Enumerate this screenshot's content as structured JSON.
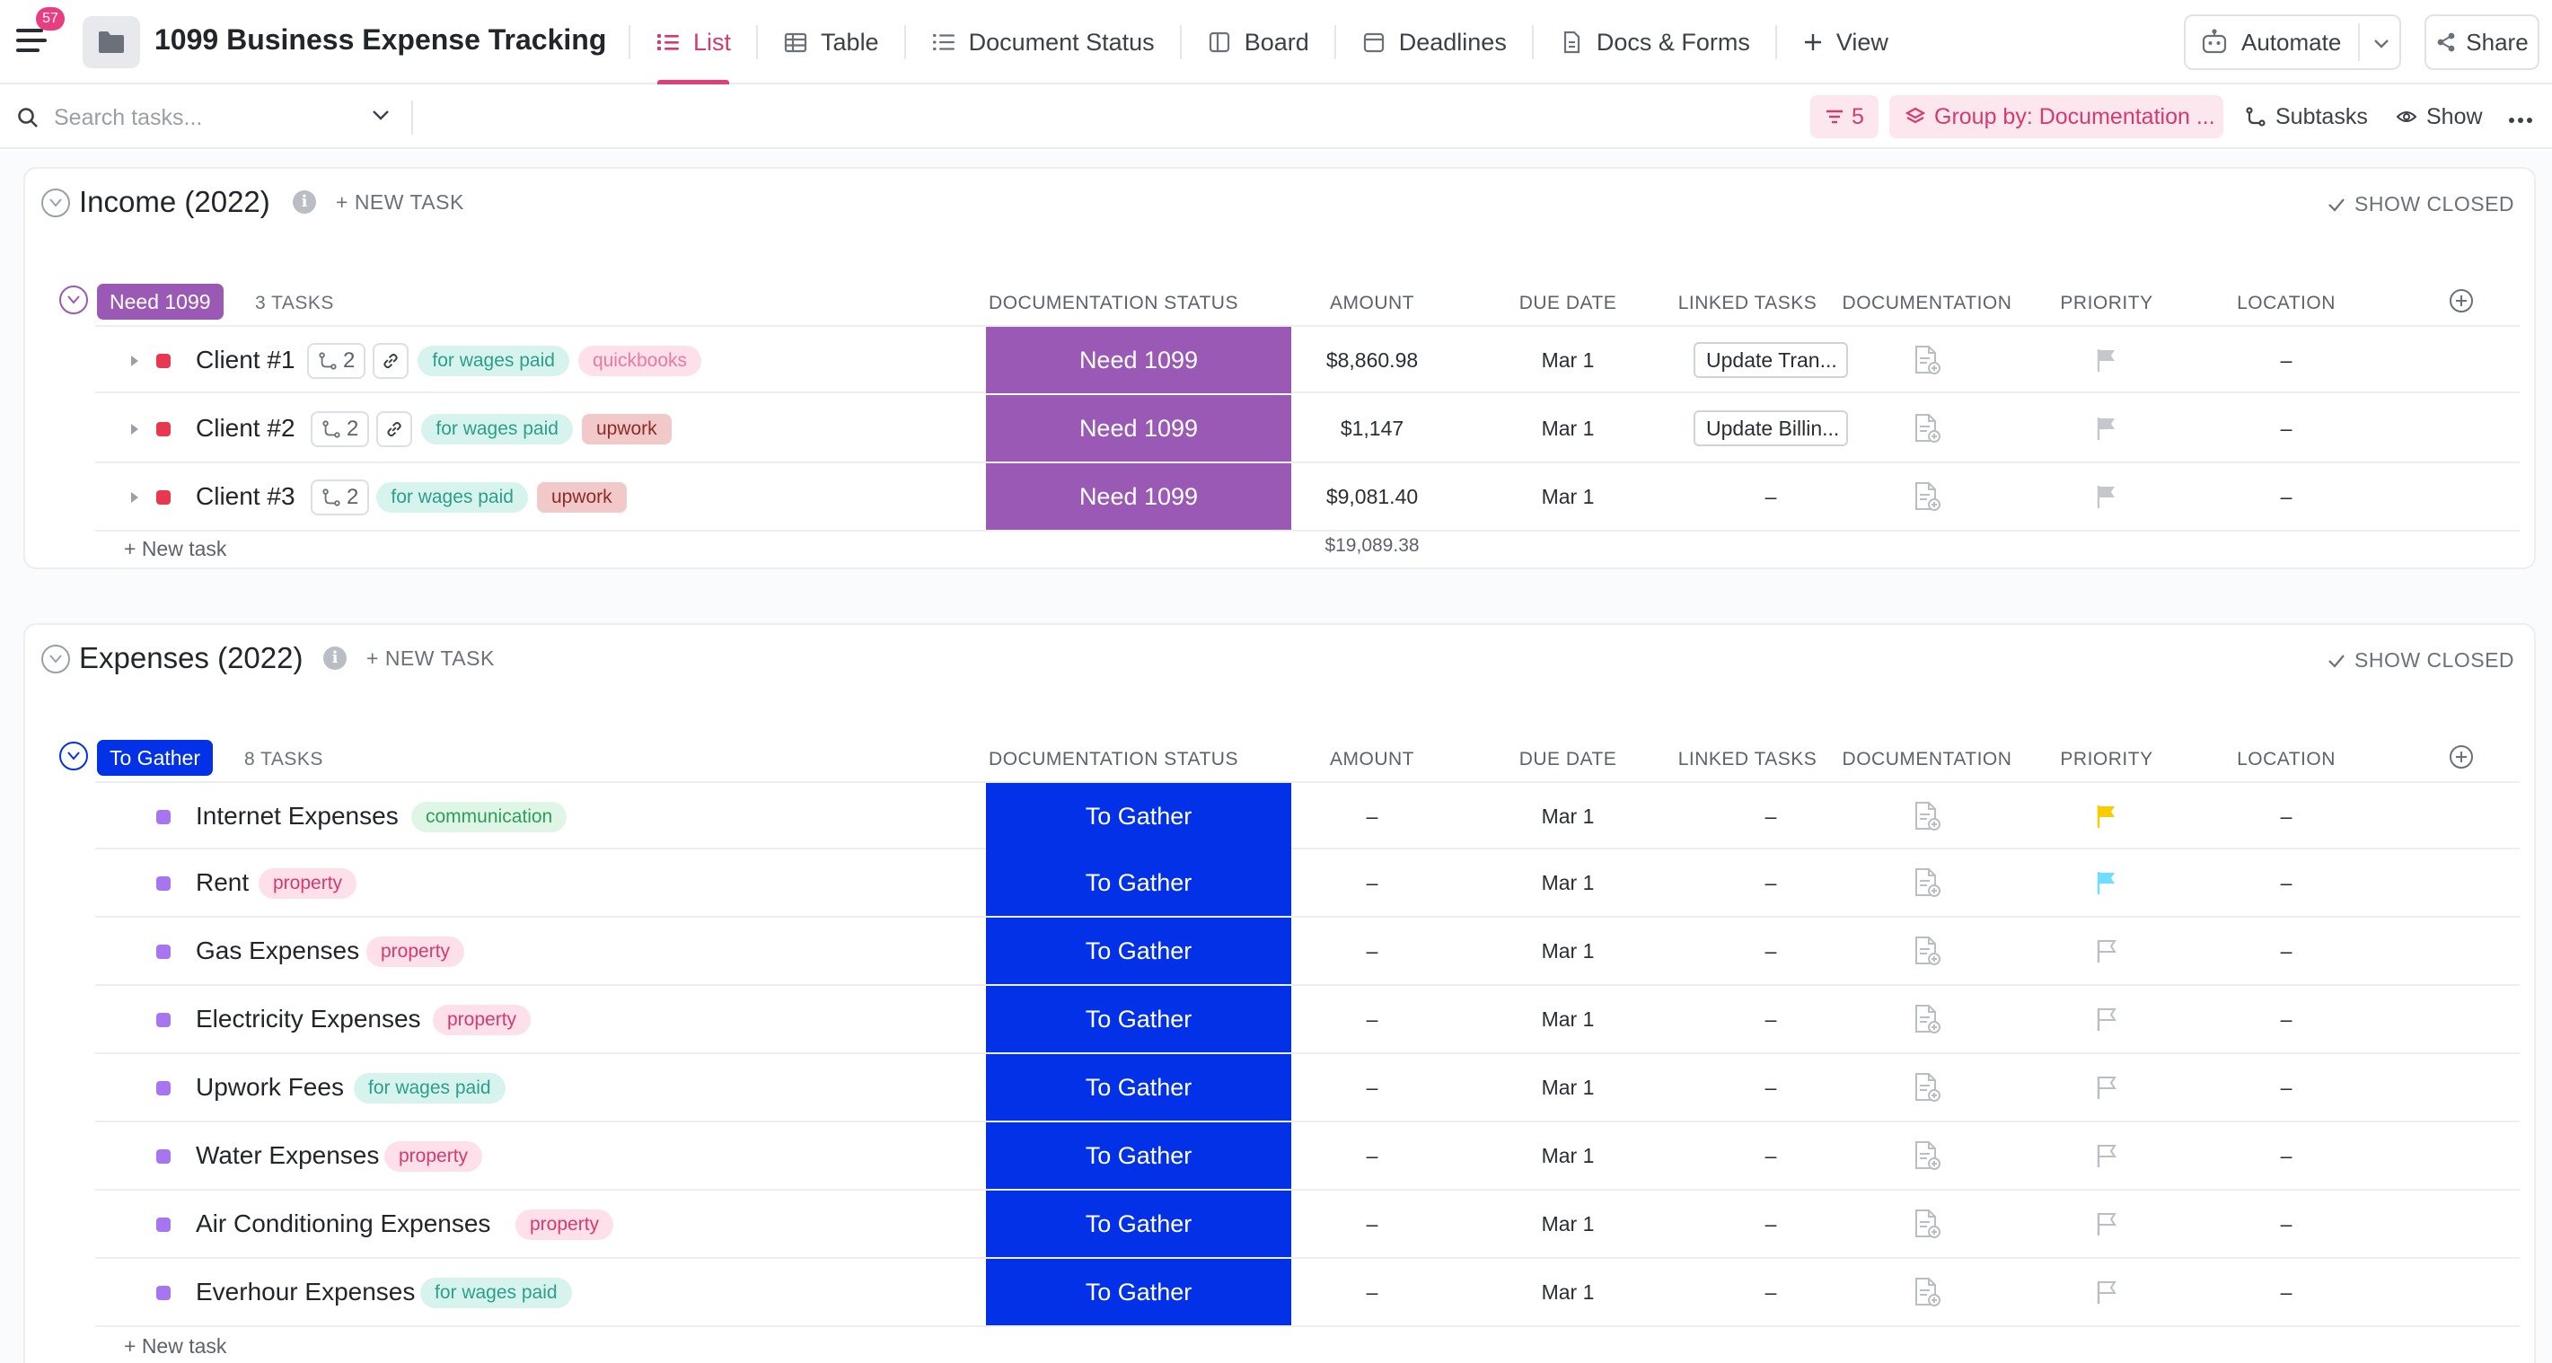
{
  "header": {
    "notification_count": "57",
    "title": "1099 Business Expense Tracking",
    "tabs": [
      {
        "label": "List",
        "icon": "list-icon"
      },
      {
        "label": "Table",
        "icon": "table-icon"
      },
      {
        "label": "Document Status",
        "icon": "list-icon"
      },
      {
        "label": "Board",
        "icon": "board-icon"
      },
      {
        "label": "Deadlines",
        "icon": "calendar-icon"
      },
      {
        "label": "Docs & Forms",
        "icon": "doc-icon"
      },
      {
        "label": "View",
        "icon": "plus-icon"
      }
    ],
    "automate_label": "Automate",
    "share_label": "Share"
  },
  "toolbar": {
    "search_placeholder": "Search tasks...",
    "filter_count": "5",
    "group_by_label": "Group by: Documentation ...",
    "subtasks_label": "Subtasks",
    "show_label": "Show"
  },
  "columns": [
    "DOCUMENTATION STATUS",
    "AMOUNT",
    "DUE DATE",
    "LINKED TASKS",
    "DOCUMENTATION",
    "PRIORITY",
    "LOCATION"
  ],
  "sections": [
    {
      "title": "Income (2022)",
      "new_task_label": "+ NEW TASK",
      "show_closed_label": "SHOW CLOSED",
      "group": {
        "label": "Need 1099",
        "count": "3 TASKS",
        "color": "#9b59b6"
      },
      "rows": [
        {
          "name": "Client #1",
          "subtasks": "2",
          "tags": [
            "for wages paid",
            "quickbooks"
          ],
          "status": "Need 1099",
          "amount": "$8,860.98",
          "due": "Mar 1",
          "linked": "Update Tran...",
          "location": "–"
        },
        {
          "name": "Client #2",
          "subtasks": "2",
          "tags": [
            "for wages paid",
            "upwork"
          ],
          "status": "Need 1099",
          "amount": "$1,147",
          "due": "Mar 1",
          "linked": "Update Billin...",
          "location": "–"
        },
        {
          "name": "Client #3",
          "subtasks": "2",
          "tags": [
            "for wages paid",
            "upwork"
          ],
          "status": "Need 1099",
          "amount": "$9,081.40",
          "due": "Mar 1",
          "linked": "–",
          "location": "–"
        }
      ],
      "new_task_row": "+ New task",
      "total": "$19,089.38"
    },
    {
      "title": "Expenses (2022)",
      "new_task_label": "+ NEW TASK",
      "show_closed_label": "SHOW CLOSED",
      "group": {
        "label": "To Gather",
        "count": "8 TASKS",
        "color": "#0231e8"
      },
      "rows": [
        {
          "name": "Internet Expenses",
          "tags": [
            "communication"
          ],
          "status": "To Gather",
          "amount": "–",
          "due": "Mar 1",
          "linked": "–",
          "priority": "high",
          "location": "–"
        },
        {
          "name": "Rent",
          "tags": [
            "property"
          ],
          "status": "To Gather",
          "amount": "–",
          "due": "Mar 1",
          "linked": "–",
          "priority": "normal",
          "location": "–"
        },
        {
          "name": "Gas Expenses",
          "tags": [
            "property"
          ],
          "status": "To Gather",
          "amount": "–",
          "due": "Mar 1",
          "linked": "–",
          "location": "–"
        },
        {
          "name": "Electricity Expenses",
          "tags": [
            "property"
          ],
          "status": "To Gather",
          "amount": "–",
          "due": "Mar 1",
          "linked": "–",
          "location": "–"
        },
        {
          "name": "Upwork Fees",
          "tags": [
            "for wages paid"
          ],
          "status": "To Gather",
          "amount": "–",
          "due": "Mar 1",
          "linked": "–",
          "location": "–"
        },
        {
          "name": "Water Expenses",
          "tags": [
            "property"
          ],
          "status": "To Gather",
          "amount": "–",
          "due": "Mar 1",
          "linked": "–",
          "location": "–"
        },
        {
          "name": "Air Conditioning Expenses",
          "tags": [
            "property"
          ],
          "status": "To Gather",
          "amount": "–",
          "due": "Mar 1",
          "linked": "–",
          "location": "–"
        },
        {
          "name": "Everhour Expenses",
          "tags": [
            "for wages paid"
          ],
          "status": "To Gather",
          "amount": "–",
          "due": "Mar 1",
          "linked": "–",
          "location": "–"
        }
      ],
      "new_task_row": "+ New task"
    }
  ],
  "colors": {
    "accent": "#e23f78",
    "need_1099": "#9b59b6",
    "to_gather": "#0231e8",
    "task_dot_income": "#e8384f",
    "task_dot_expense": "#a875f0",
    "flag_yellow": "#f8cc00",
    "flag_blue": "#6fddff"
  }
}
